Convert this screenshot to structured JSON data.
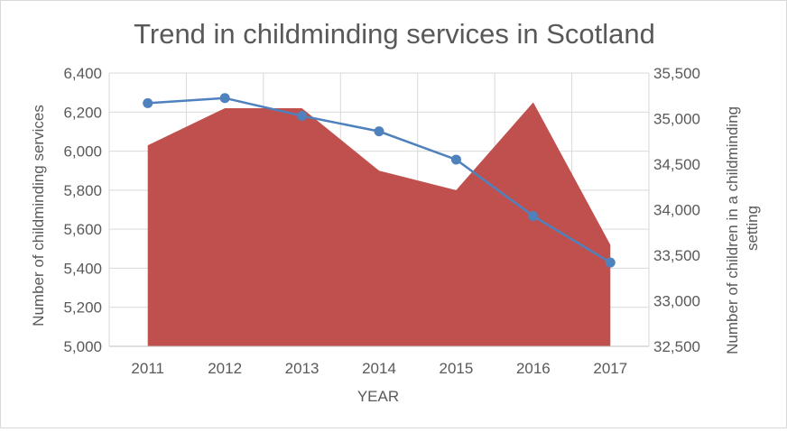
{
  "chart_data": {
    "type": "area",
    "title": "Trend in childminding services in Scotland",
    "xlabel": "YEAR",
    "ylabel_left": "Number of childminding services",
    "ylabel_right_lines": [
      "Number of children in a childminding",
      "setting"
    ],
    "categories": [
      "2011",
      "2012",
      "2013",
      "2014",
      "2015",
      "2016",
      "2017"
    ],
    "y_left": {
      "min": 5000,
      "max": 6400,
      "step": 200,
      "ticks": [
        "5,000",
        "5,200",
        "5,400",
        "5,600",
        "5,800",
        "6,000",
        "6,200",
        "6,400"
      ]
    },
    "y_right": {
      "min": 32500,
      "max": 35500,
      "step": 500,
      "ticks": [
        "32,500",
        "33,000",
        "33,500",
        "34,000",
        "34,500",
        "35,000",
        "35,500"
      ]
    },
    "grid": true,
    "legend": "none",
    "series": [
      {
        "type": "area",
        "axis": "left",
        "color": "#c0504d",
        "values": [
          6030,
          6220,
          6220,
          5900,
          5800,
          6250,
          5520
        ]
      },
      {
        "type": "line",
        "axis": "right",
        "color": "#4f81bd",
        "values": [
          35170,
          35225,
          35030,
          34860,
          34550,
          33930,
          33420
        ]
      }
    ]
  }
}
